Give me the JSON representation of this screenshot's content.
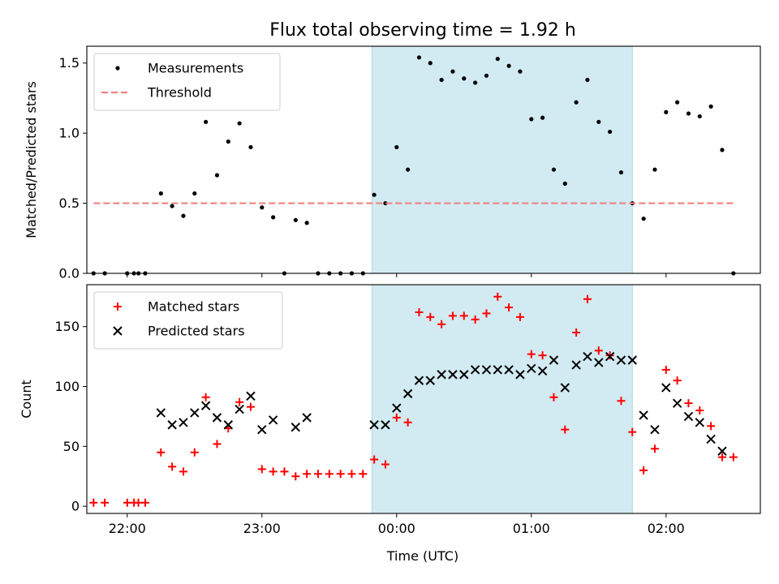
{
  "chart_data": [
    {
      "type": "scatter",
      "title": "Flux total observing time = 1.92 h",
      "xlabel": "",
      "ylabel": "Matched/Predicted stars",
      "ylim": [
        0,
        1.62
      ],
      "yticks": [
        0.0,
        0.5,
        1.0,
        1.5
      ],
      "ytick_labels": [
        "0.0",
        "0.5",
        "1.0",
        "1.5"
      ],
      "xtick_labels": [
        "",
        "",
        "",
        "",
        "",
        ""
      ],
      "legend": "top-left",
      "shaded_interval": [
        "23:49",
        "01:45"
      ],
      "shade_color": "#add8e6",
      "series": [
        {
          "name": "Measurements",
          "marker": "dot",
          "color": "#000000",
          "points": [
            [
              "21:45",
              0.0
            ],
            [
              "21:50",
              0.0
            ],
            [
              "22:00",
              0.0
            ],
            [
              "22:03",
              0.0
            ],
            [
              "22:05",
              0.0
            ],
            [
              "22:08",
              0.0
            ],
            [
              "22:15",
              0.57
            ],
            [
              "22:20",
              0.48
            ],
            [
              "22:25",
              0.41
            ],
            [
              "22:30",
              0.57
            ],
            [
              "22:35",
              1.08
            ],
            [
              "22:40",
              0.7
            ],
            [
              "22:45",
              0.94
            ],
            [
              "22:50",
              1.07
            ],
            [
              "22:55",
              0.9
            ],
            [
              "23:00",
              0.47
            ],
            [
              "23:05",
              0.4
            ],
            [
              "23:10",
              0.0
            ],
            [
              "23:15",
              0.38
            ],
            [
              "23:20",
              0.36
            ],
            [
              "23:25",
              0.0
            ],
            [
              "23:30",
              0.0
            ],
            [
              "23:35",
              0.0
            ],
            [
              "23:40",
              0.0
            ],
            [
              "23:45",
              0.0
            ],
            [
              "23:50",
              0.56
            ],
            [
              "23:55",
              0.5
            ],
            [
              "00:00",
              0.9
            ],
            [
              "00:05",
              0.74
            ],
            [
              "00:10",
              1.54
            ],
            [
              "00:15",
              1.5
            ],
            [
              "00:20",
              1.38
            ],
            [
              "00:25",
              1.44
            ],
            [
              "00:30",
              1.39
            ],
            [
              "00:35",
              1.36
            ],
            [
              "00:40",
              1.41
            ],
            [
              "00:45",
              1.53
            ],
            [
              "00:50",
              1.48
            ],
            [
              "00:55",
              1.44
            ],
            [
              "01:00",
              1.1
            ],
            [
              "01:05",
              1.11
            ],
            [
              "01:10",
              0.74
            ],
            [
              "01:15",
              0.64
            ],
            [
              "01:20",
              1.22
            ],
            [
              "01:25",
              1.38
            ],
            [
              "01:30",
              1.08
            ],
            [
              "01:35",
              1.01
            ],
            [
              "01:40",
              0.72
            ],
            [
              "01:45",
              0.5
            ],
            [
              "01:50",
              0.39
            ],
            [
              "01:55",
              0.74
            ],
            [
              "02:00",
              1.15
            ],
            [
              "02:05",
              1.22
            ],
            [
              "02:10",
              1.14
            ],
            [
              "02:15",
              1.12
            ],
            [
              "02:20",
              1.19
            ],
            [
              "02:25",
              0.88
            ],
            [
              "02:30",
              0.0
            ]
          ]
        },
        {
          "name": "Threshold",
          "style": "dashed",
          "color": "#f08080",
          "points": [
            [
              "21:45",
              0.5
            ],
            [
              "02:30",
              0.5
            ]
          ]
        }
      ]
    },
    {
      "type": "scatter",
      "title": "",
      "xlabel": "Time (UTC)",
      "ylabel": "Count",
      "ylim": [
        -6,
        185
      ],
      "yticks": [
        0,
        50,
        100,
        150
      ],
      "ytick_labels": [
        "0",
        "50",
        "100",
        "150"
      ],
      "xticks": [
        "22:00",
        "23:00",
        "00:00",
        "01:00",
        "02:00"
      ],
      "xtick_labels": [
        "22:00",
        "23:00",
        "00:00",
        "01:00",
        "02:00"
      ],
      "legend": "top-left",
      "shaded_interval": [
        "23:49",
        "01:45"
      ],
      "shade_color": "#add8e6",
      "series": [
        {
          "name": "Matched stars",
          "marker": "plus",
          "color": "#ff0000",
          "points": [
            [
              "21:45",
              3
            ],
            [
              "21:50",
              3
            ],
            [
              "22:00",
              3
            ],
            [
              "22:03",
              3
            ],
            [
              "22:05",
              3
            ],
            [
              "22:08",
              3
            ],
            [
              "22:15",
              45
            ],
            [
              "22:20",
              33
            ],
            [
              "22:25",
              29
            ],
            [
              "22:30",
              45
            ],
            [
              "22:35",
              91
            ],
            [
              "22:40",
              52
            ],
            [
              "22:45",
              65
            ],
            [
              "22:50",
              87
            ],
            [
              "22:55",
              83
            ],
            [
              "23:00",
              31
            ],
            [
              "23:05",
              29
            ],
            [
              "23:10",
              29
            ],
            [
              "23:15",
              25
            ],
            [
              "23:20",
              27
            ],
            [
              "23:25",
              27
            ],
            [
              "23:30",
              27
            ],
            [
              "23:35",
              27
            ],
            [
              "23:40",
              27
            ],
            [
              "23:45",
              27
            ],
            [
              "23:50",
              39
            ],
            [
              "23:55",
              35
            ],
            [
              "00:00",
              74
            ],
            [
              "00:05",
              70
            ],
            [
              "00:10",
              162
            ],
            [
              "00:15",
              158
            ],
            [
              "00:20",
              152
            ],
            [
              "00:25",
              159
            ],
            [
              "00:30",
              159
            ],
            [
              "00:35",
              156
            ],
            [
              "00:40",
              161
            ],
            [
              "00:45",
              175
            ],
            [
              "00:50",
              166
            ],
            [
              "00:55",
              158
            ],
            [
              "01:00",
              127
            ],
            [
              "01:05",
              126
            ],
            [
              "01:10",
              91
            ],
            [
              "01:15",
              64
            ],
            [
              "01:20",
              145
            ],
            [
              "01:25",
              173
            ],
            [
              "01:30",
              130
            ],
            [
              "01:35",
              126
            ],
            [
              "01:40",
              88
            ],
            [
              "01:45",
              62
            ],
            [
              "01:50",
              30
            ],
            [
              "01:55",
              48
            ],
            [
              "02:00",
              114
            ],
            [
              "02:05",
              105
            ],
            [
              "02:10",
              86
            ],
            [
              "02:15",
              80
            ],
            [
              "02:20",
              67
            ],
            [
              "02:25",
              41
            ],
            [
              "02:30",
              41
            ]
          ]
        },
        {
          "name": "Predicted stars",
          "marker": "x",
          "color": "#000000",
          "points": [
            [
              "22:15",
              78
            ],
            [
              "22:20",
              68
            ],
            [
              "22:25",
              70
            ],
            [
              "22:30",
              78
            ],
            [
              "22:35",
              84
            ],
            [
              "22:40",
              74
            ],
            [
              "22:45",
              68
            ],
            [
              "22:50",
              81
            ],
            [
              "22:55",
              92
            ],
            [
              "23:00",
              64
            ],
            [
              "23:05",
              72
            ],
            [
              "23:15",
              66
            ],
            [
              "23:20",
              74
            ],
            [
              "23:50",
              68
            ],
            [
              "23:55",
              68
            ],
            [
              "00:00",
              82
            ],
            [
              "00:05",
              94
            ],
            [
              "00:10",
              105
            ],
            [
              "00:15",
              105
            ],
            [
              "00:20",
              110
            ],
            [
              "00:25",
              110
            ],
            [
              "00:30",
              110
            ],
            [
              "00:35",
              114
            ],
            [
              "00:40",
              114
            ],
            [
              "00:45",
              114
            ],
            [
              "00:50",
              114
            ],
            [
              "00:55",
              110
            ],
            [
              "01:00",
              115
            ],
            [
              "01:05",
              113
            ],
            [
              "01:10",
              122
            ],
            [
              "01:15",
              99
            ],
            [
              "01:20",
              118
            ],
            [
              "01:25",
              125
            ],
            [
              "01:30",
              120
            ],
            [
              "01:35",
              125
            ],
            [
              "01:40",
              122
            ],
            [
              "01:45",
              122
            ],
            [
              "01:50",
              76
            ],
            [
              "01:55",
              64
            ],
            [
              "02:00",
              99
            ],
            [
              "02:05",
              86
            ],
            [
              "02:10",
              75
            ],
            [
              "02:15",
              70
            ],
            [
              "02:20",
              56
            ],
            [
              "02:25",
              46
            ]
          ]
        }
      ]
    }
  ]
}
